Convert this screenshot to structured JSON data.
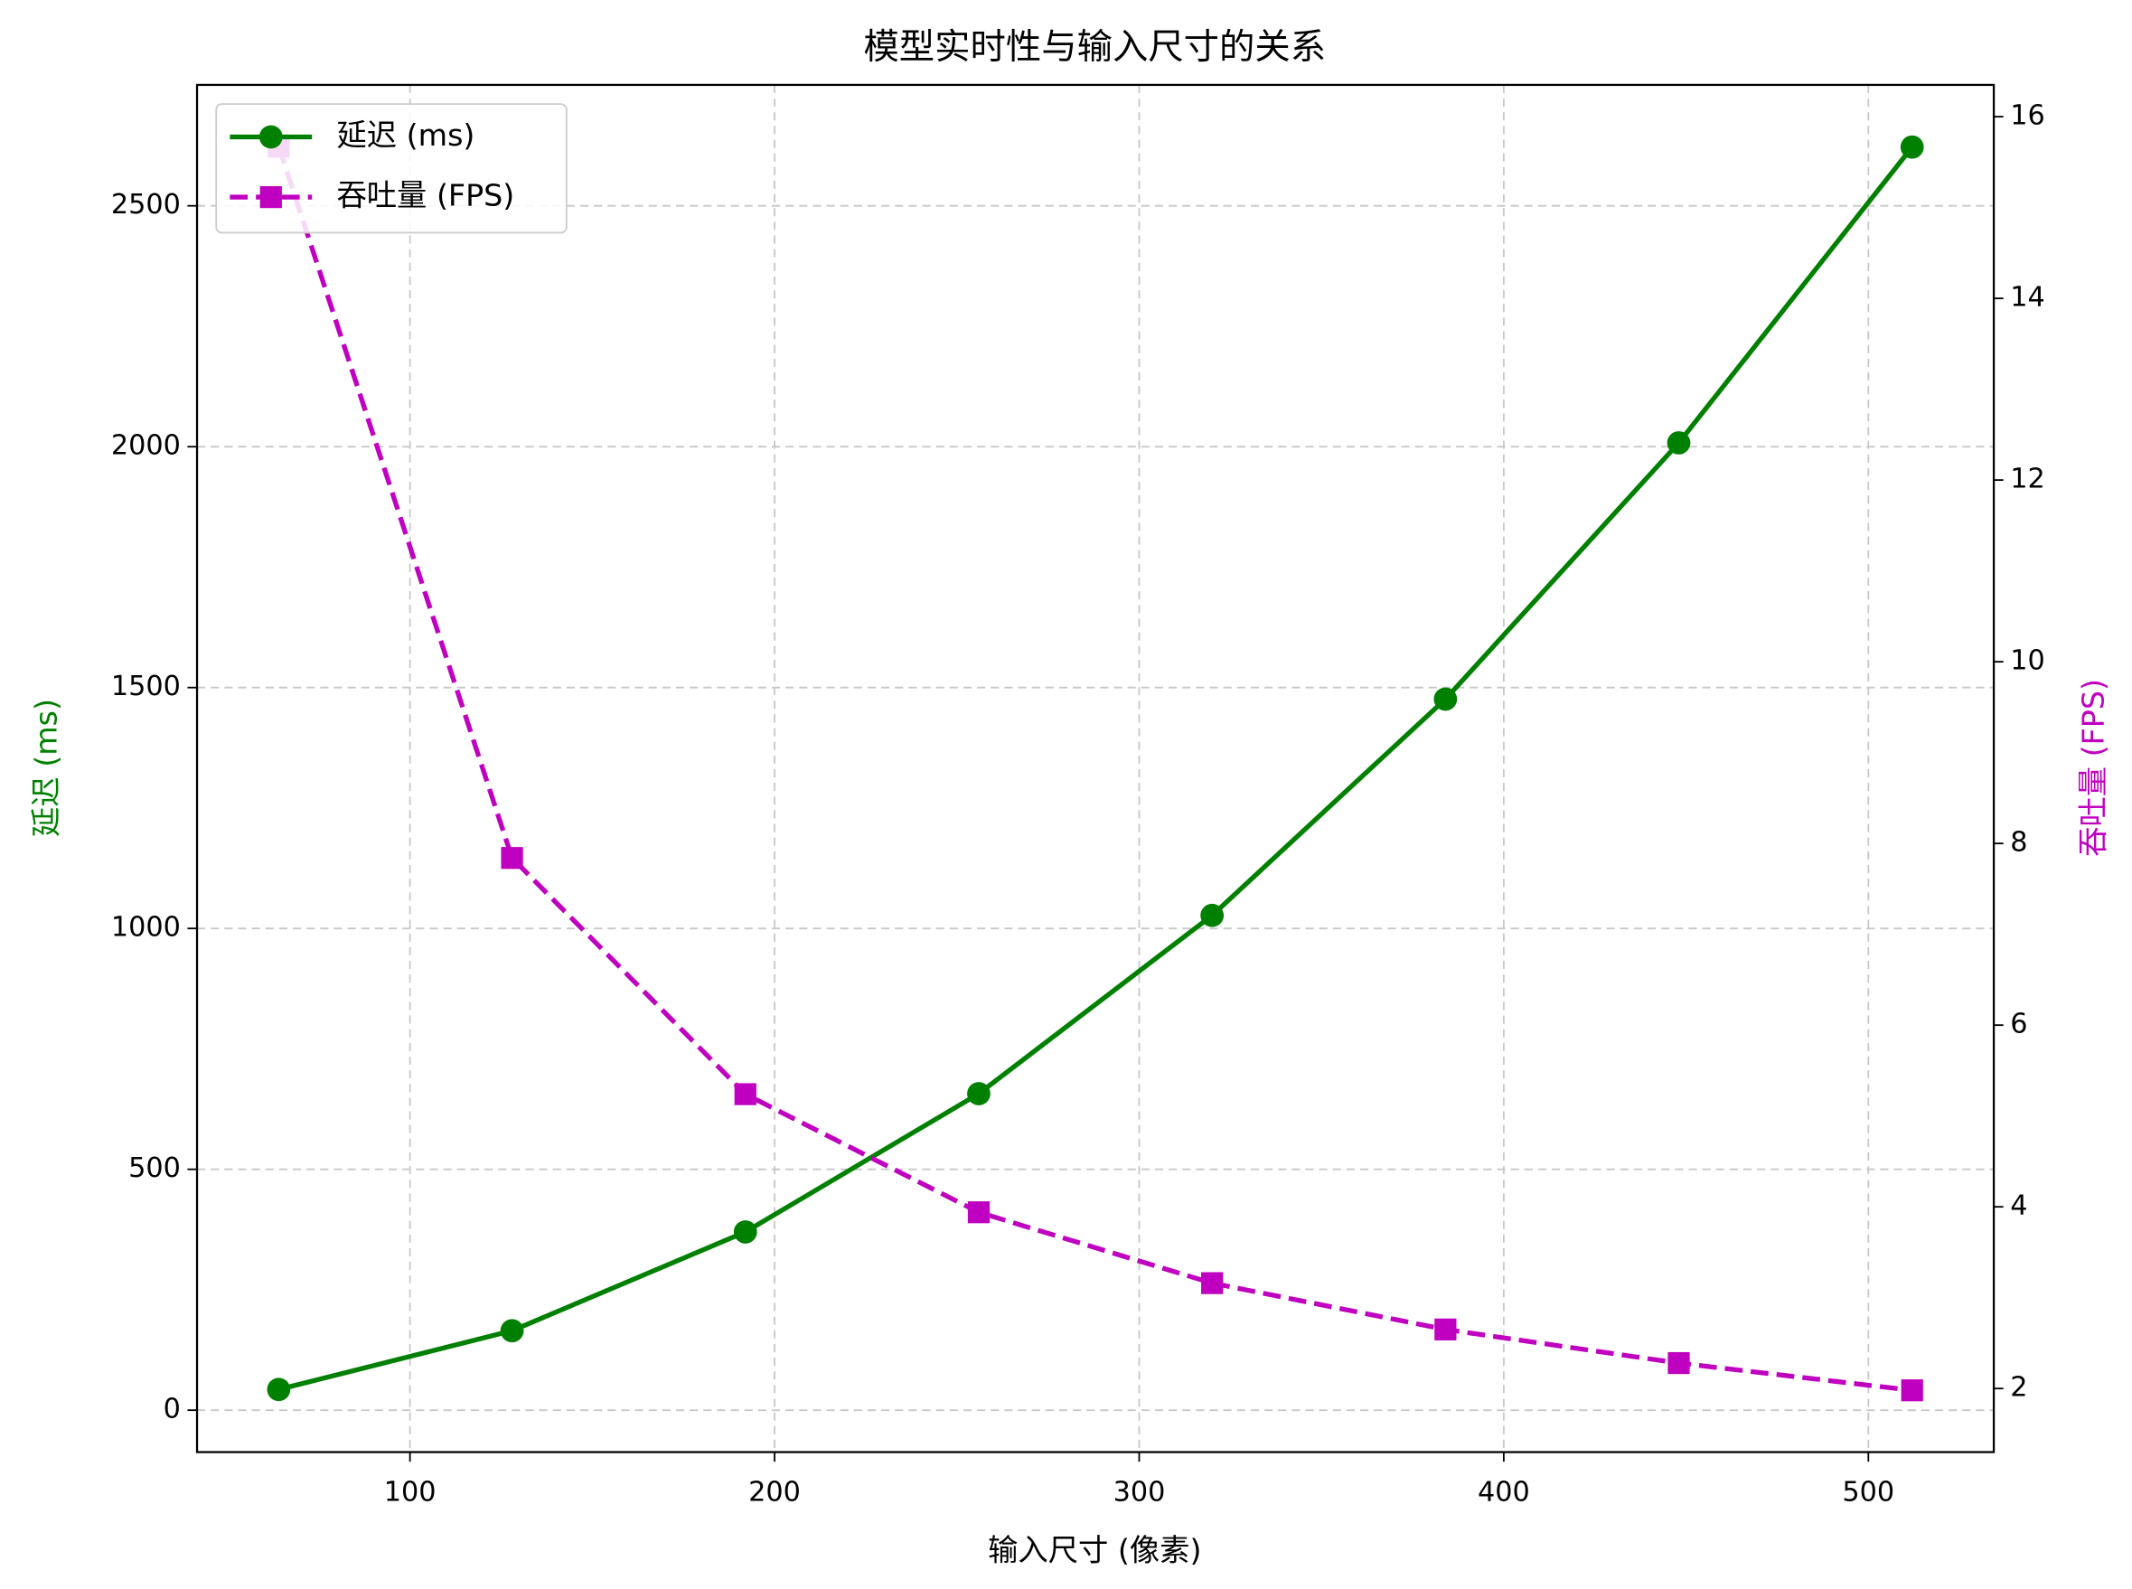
{
  "chart_data": {
    "type": "line",
    "title": "模型实时性与输入尺寸的关系",
    "x_label": "输入尺寸 (像素)",
    "y_label": "延迟 (ms)",
    "y2_label": "吞吐量 (FPS)",
    "x": [
      64,
      128,
      192,
      256,
      320,
      384,
      448,
      512
    ],
    "series": [
      {
        "name": "延迟 (ms)",
        "color": "#008000",
        "marker": "circle",
        "dash": "solid",
        "axis": "y",
        "values": [
          43,
          165,
          370,
          657,
          1027,
          1476,
          2008,
          2622
        ]
      },
      {
        "name": "吞吐量 (FPS)",
        "color": "#c000c0",
        "marker": "square",
        "dash": "dashed",
        "axis": "y2",
        "values": [
          15.67,
          7.84,
          5.24,
          3.94,
          3.16,
          2.65,
          2.28,
          1.98
        ]
      }
    ],
    "xlim": [
      41.6,
      534.4
    ],
    "xticks": [
      100,
      200,
      300,
      400,
      500
    ],
    "ylim": [
      -87,
      2751
    ],
    "yticks": [
      0,
      500,
      1000,
      1500,
      2000,
      2500
    ],
    "y2lim": [
      1.3,
      16.35
    ],
    "y2ticks": [
      2,
      4,
      6,
      8,
      10,
      12,
      14,
      16
    ],
    "grid": true,
    "legend": "upper left"
  }
}
